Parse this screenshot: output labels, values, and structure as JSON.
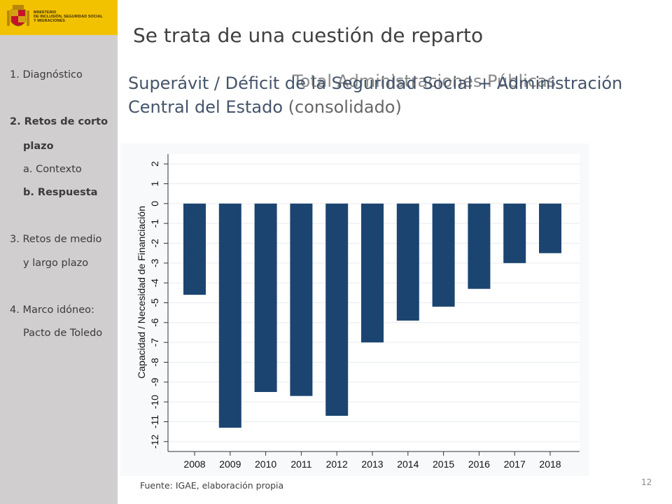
{
  "logo": {
    "ministry_lines": [
      "MINISTERIO",
      "DE INCLUSIÓN, SEGURIDAD SOCIAL",
      "Y MIGRACIONES"
    ]
  },
  "sidebar": {
    "items": [
      {
        "label": "1. Diagnóstico",
        "bold": false
      },
      {
        "label": "2. Retos de corto",
        "bold": true
      },
      {
        "label": "plazo",
        "bold": true
      },
      {
        "label": "a. Contexto",
        "bold": false
      },
      {
        "label": "b. Respuesta",
        "bold": true
      },
      {
        "label": "3. Retos de medio",
        "bold": false
      },
      {
        "label": "y largo plazo",
        "bold": false
      },
      {
        "label": "4. Marco idóneo:",
        "bold": false
      },
      {
        "label": "Pacto de Toledo",
        "bold": false
      }
    ]
  },
  "slide": {
    "title": "Se trata de una cuestión de reparto",
    "subtitle_ghost": "Total Administraciones Públicas",
    "subtitle_main": "Superávit / Déficit de la Seguridad Social + Administración Central del Estado",
    "subtitle_paren": "(consolidado)",
    "source": "Fuente: IGAE, elaboración propia",
    "page_number": "12"
  },
  "colors": {
    "bar": "#1b4570",
    "sidebar": "#d0cece",
    "logo_bg": "#f2c200"
  },
  "chart_data": {
    "type": "bar",
    "categories": [
      "2008",
      "2009",
      "2010",
      "2011",
      "2012",
      "2013",
      "2014",
      "2015",
      "2016",
      "2017",
      "2018"
    ],
    "values": [
      -4.6,
      -11.3,
      -9.5,
      -9.7,
      -10.7,
      -7.0,
      -5.9,
      -5.2,
      -4.3,
      -3.0,
      -2.5
    ],
    "ylabel": "Capacidad / Necesidad de Financiación",
    "xlabel": "",
    "ylim": [
      -12.5,
      2.5
    ],
    "yticks": [
      2,
      1,
      0,
      -1,
      -2,
      -3,
      -4,
      -5,
      -6,
      -7,
      -8,
      -9,
      -10,
      -11,
      -12
    ],
    "grid": true
  }
}
